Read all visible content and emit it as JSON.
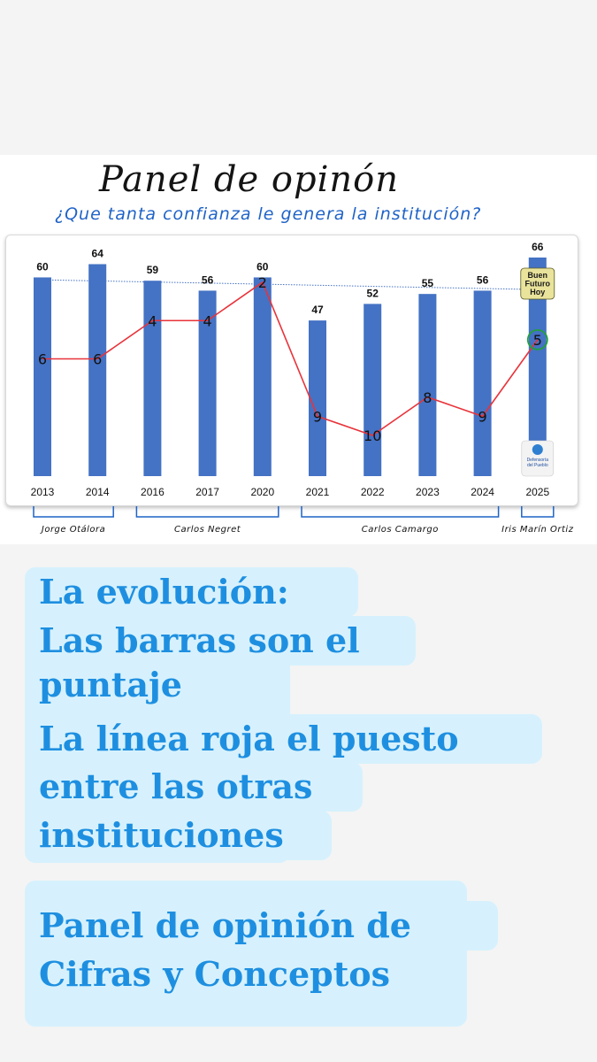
{
  "title": "Panel de opinón",
  "subtitle": "¿Que tanta confianza le genera la institución?",
  "chart_data": {
    "type": "bar",
    "categories": [
      "2013",
      "2014",
      "2016",
      "2017",
      "2020",
      "2021",
      "2022",
      "2023",
      "2024",
      "2025"
    ],
    "series": [
      {
        "values": [
          60,
          64,
          59,
          56,
          60,
          47,
          52,
          55,
          56,
          66
        ],
        "color": "#4472c4"
      },
      {
        "values": [
          6,
          6,
          4,
          4,
          2,
          9,
          10,
          8,
          9,
          5
        ],
        "color": "#e8333a"
      }
    ],
    "ylim": [
      0,
      70
    ],
    "grid": false,
    "average_line_color": "#4472c4",
    "directors": [
      {
        "name": "Jorge Otálora",
        "from": "2013",
        "to": "2014"
      },
      {
        "name": "Carlos Negret",
        "from": "2016",
        "to": "2020"
      },
      {
        "name": "Carlos Camargo",
        "from": "2021",
        "to": "2024"
      },
      {
        "name": "Iris Marín Ortiz",
        "from": "2025",
        "to": "2025"
      }
    ],
    "highlighted_rank": "5",
    "badges": [
      {
        "icon": "buen-futuro-hoy-logo",
        "text": [
          "Buen",
          "Futuro",
          "Hoy"
        ]
      },
      {
        "icon": "defensoria-del-pueblo-logo",
        "text": [
          "Defensoría",
          "del Pueblo"
        ]
      }
    ]
  },
  "caption": {
    "lines": [
      "La evolución:",
      "Las barras son el",
      "puntaje",
      "La línea roja el puesto",
      "entre las otras",
      "instituciones",
      "Panel de opinión de",
      "Cifras y Conceptos"
    ],
    "text_color": "#1e8fe0",
    "highlight_color": "#d6f1fd"
  }
}
